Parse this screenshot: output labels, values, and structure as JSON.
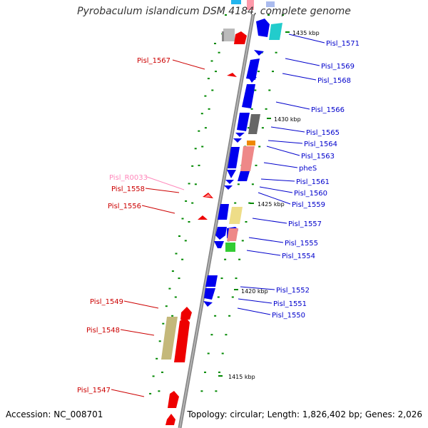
{
  "title": "Pyrobaculum islandicum DSM 4184, complete genome",
  "footer": {
    "accession_label": "Accession: NC_008701",
    "topology_label": "Topology: circular; Length: 1,826,402 bp; Genes: 2,026"
  },
  "scale_labels": [
    "1435 kbp",
    "1430 kbp",
    "1425 kbp",
    "1420 kbp",
    "1415 kbp"
  ],
  "right_labels": [
    "Pisl_1571",
    "Pisl_1569",
    "Pisl_1568",
    "Pisl_1566",
    "Pisl_1565",
    "Pisl_1564",
    "Pisl_1563",
    "pheS",
    "Pisl_1561",
    "Pisl_1560",
    "Pisl_1559",
    "Pisl_1557",
    "Pisl_1555",
    "Pisl_1554",
    "Pisl_1552",
    "Pisl_1551",
    "Pisl_1550"
  ],
  "left_labels": [
    "Pisl_1567",
    "Pisl_R0033",
    "Pisl_1558",
    "Pisl_1556",
    "Pisl_1549",
    "Pisl_1548",
    "Pisl_1547"
  ],
  "colors": {
    "forward_strand": "#0000ee",
    "reverse_strand": "#ee0000",
    "rna_label": "#ff88bb",
    "backbone": "#888888",
    "tick": "#008800"
  }
}
